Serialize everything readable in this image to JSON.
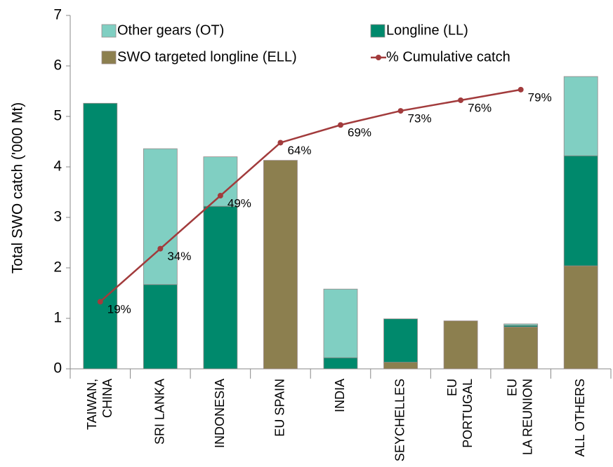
{
  "chart_data": {
    "type": "bar",
    "stacked": true,
    "y_label": "Total SWO catch ('000 Mt)",
    "categories": [
      "TAIWAN,\nCHINA",
      "SRI LANKA",
      "INDONESIA",
      "EU SPAIN",
      "INDIA",
      "SEYCHELLES",
      "EU\nPORTUGAL",
      "EU\nLA REUNION",
      "ALL OTHERS"
    ],
    "series": [
      {
        "name": "SWO targeted longline (ELL)",
        "color": "#8c7f4f",
        "values": [
          0,
          0,
          0,
          4.13,
          0,
          0.13,
          0.95,
          0.83,
          2.04
        ]
      },
      {
        "name": "Longline (LL)",
        "color": "#00896c",
        "values": [
          5.26,
          1.67,
          3.22,
          0,
          0.22,
          0.86,
          0,
          0.03,
          2.18
        ]
      },
      {
        "name": "Other gears (OT)",
        "color": "#80cfc2",
        "values": [
          0,
          2.69,
          0.98,
          0,
          1.36,
          0,
          0,
          0.03,
          1.57
        ]
      },
      {
        "name": "% Cumulative catch",
        "type": "line",
        "axis": "y2",
        "color": "#a23b3c",
        "values": [
          19,
          34,
          49,
          64,
          69,
          73,
          76,
          79,
          null
        ],
        "value_labels": [
          "19%",
          "34%",
          "49%",
          "64%",
          "69%",
          "73%",
          "76%",
          "79%",
          null
        ]
      }
    ],
    "ylim": [
      0,
      7
    ],
    "yticks": [
      0,
      1,
      2,
      3,
      4,
      5,
      6,
      7
    ],
    "y2lim": [
      0,
      100
    ],
    "grid": false,
    "legend": "top"
  }
}
